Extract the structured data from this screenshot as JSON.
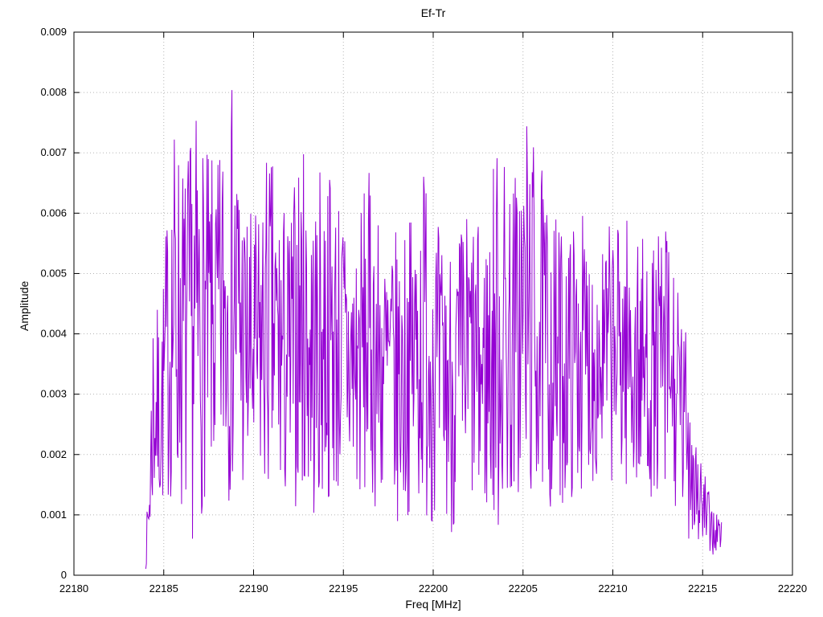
{
  "colors": {
    "series": "#9400d3",
    "grid": "#b5b5b5",
    "axis": "#000000",
    "text": "#000000",
    "background": "#ffffff"
  },
  "chart_data": {
    "type": "line",
    "title": "Ef-Tr",
    "xlabel": "Freq [MHz]",
    "ylabel": "Amplitude",
    "xlim": [
      22180,
      22220
    ],
    "ylim": [
      0,
      0.009
    ],
    "x_ticks": [
      22180,
      22185,
      22190,
      22195,
      22200,
      22205,
      22210,
      22215,
      22220
    ],
    "x_tick_labels": [
      "22180",
      "22185",
      "22190",
      "22195",
      "22200",
      "22205",
      "22210",
      "22215",
      "22220"
    ],
    "y_ticks": [
      0,
      0.001,
      0.002,
      0.003,
      0.004,
      0.005,
      0.006,
      0.007,
      0.008,
      0.009
    ],
    "y_tick_labels": [
      "0",
      "0.001",
      "0.002",
      "0.003",
      "0.004",
      "0.005",
      "0.006",
      "0.007",
      "0.008",
      "0.009"
    ],
    "grid": "dotted",
    "legend": "none",
    "series": [
      {
        "name": "Ef-Tr",
        "color": "#9400d3",
        "x_start": 22184.0,
        "x_end": 22216.05,
        "n_points": 950,
        "seed": 7,
        "envelope_format": "[freq_mhz, amp_min, amp_max]",
        "envelope": [
          [
            22184.0,
            0.0001,
            0.0006
          ],
          [
            22184.2,
            0.0004,
            0.002
          ],
          [
            22184.4,
            0.0008,
            0.0049
          ],
          [
            22184.8,
            0.001,
            0.0042
          ],
          [
            22185.2,
            0.0011,
            0.0062
          ],
          [
            22185.6,
            0.0013,
            0.0076
          ],
          [
            22186.2,
            0.0007,
            0.0069
          ],
          [
            22186.8,
            0.0005,
            0.0077
          ],
          [
            22187.4,
            0.0014,
            0.007
          ],
          [
            22188.0,
            0.0013,
            0.0068
          ],
          [
            22188.6,
            0.0012,
            0.0085
          ],
          [
            22189.0,
            0.0014,
            0.0078
          ],
          [
            22189.6,
            0.001,
            0.0062
          ],
          [
            22190.2,
            0.0011,
            0.006
          ],
          [
            22190.8,
            0.0012,
            0.0072
          ],
          [
            22191.4,
            0.001,
            0.0065
          ],
          [
            22192.0,
            0.0009,
            0.006
          ],
          [
            22192.6,
            0.0013,
            0.0073
          ],
          [
            22193.4,
            0.0008,
            0.0064
          ],
          [
            22194.0,
            0.0011,
            0.0071
          ],
          [
            22194.8,
            0.0012,
            0.0064
          ],
          [
            22195.6,
            0.0009,
            0.0059
          ],
          [
            22196.4,
            0.0012,
            0.0067
          ],
          [
            22197.2,
            0.001,
            0.0058
          ],
          [
            22198.0,
            0.0007,
            0.0057
          ],
          [
            22198.8,
            0.0011,
            0.006
          ],
          [
            22199.6,
            0.0009,
            0.0072
          ],
          [
            22200.4,
            0.0008,
            0.0056
          ],
          [
            22201.2,
            0.0006,
            0.0057
          ],
          [
            22202.0,
            0.001,
            0.0062
          ],
          [
            22202.8,
            0.0009,
            0.0056
          ],
          [
            22203.6,
            0.0006,
            0.0075
          ],
          [
            22204.4,
            0.0011,
            0.0066
          ],
          [
            22205.2,
            0.001,
            0.0078
          ],
          [
            22205.8,
            0.0012,
            0.007
          ],
          [
            22206.6,
            0.001,
            0.0061
          ],
          [
            22207.4,
            0.0012,
            0.0057
          ],
          [
            22208.2,
            0.0014,
            0.0061
          ],
          [
            22209.0,
            0.0015,
            0.0055
          ],
          [
            22209.8,
            0.0016,
            0.0058
          ],
          [
            22210.6,
            0.0014,
            0.0061
          ],
          [
            22211.4,
            0.0012,
            0.0057
          ],
          [
            22212.2,
            0.0013,
            0.0054
          ],
          [
            22213.0,
            0.001,
            0.006
          ],
          [
            22213.6,
            0.0008,
            0.0048
          ],
          [
            22214.2,
            0.0006,
            0.004
          ],
          [
            22214.8,
            0.0004,
            0.0022
          ],
          [
            22215.4,
            0.0003,
            0.0013
          ],
          [
            22216.05,
            0.0003,
            0.001
          ]
        ]
      }
    ]
  }
}
